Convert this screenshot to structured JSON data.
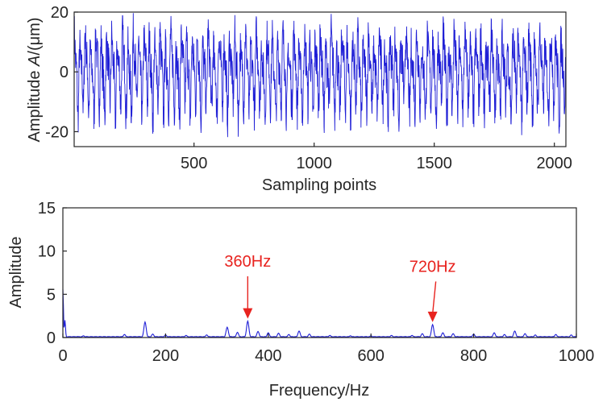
{
  "colors": {
    "series": "#1f1fd6",
    "annotation": "#e8231f",
    "axis": "#262626"
  },
  "chart_data": [
    {
      "type": "line",
      "title": "",
      "xlabel": "Sampling points",
      "ylabel_prefix": "Amplitude ",
      "ylabel_var": "A",
      "ylabel_suffix": "/(μm)",
      "xlim": [
        1,
        2048
      ],
      "ylim": [
        -25,
        20
      ],
      "xticks": [
        500,
        1000,
        1500,
        2000
      ],
      "xtick_labels": [
        "500",
        "1000",
        "1500",
        "2000"
      ],
      "yticks": [
        -20,
        0,
        20
      ],
      "ytick_labels": [
        "-20",
        "0",
        "20"
      ],
      "grid": false,
      "series": [
        {
          "n_points": 2048,
          "range": [
            -25,
            20
          ],
          "dominant_frequency_hz": 360,
          "harmonic_hz": 720
        }
      ]
    },
    {
      "type": "line",
      "title": "",
      "xlabel": "Frequency/Hz",
      "ylabel": "Amplitude",
      "xlim": [
        0,
        1000
      ],
      "ylim": [
        0,
        15
      ],
      "xticks": [
        0,
        200,
        400,
        600,
        800,
        1000
      ],
      "xtick_labels": [
        "0",
        "200",
        "400",
        "600",
        "800",
        "1000"
      ],
      "yticks": [
        0,
        5,
        10,
        15
      ],
      "ytick_labels": [
        "0",
        "5",
        "10",
        "15"
      ],
      "grid": false,
      "series": [
        {
          "peaks": [
            {
              "x": 0,
              "y": 5.6
            },
            {
              "x": 4,
              "y": 2.0
            },
            {
              "x": 40,
              "y": 0.2
            },
            {
              "x": 120,
              "y": 0.35
            },
            {
              "x": 160,
              "y": 1.8
            },
            {
              "x": 175,
              "y": 0.4
            },
            {
              "x": 200,
              "y": 0.3
            },
            {
              "x": 240,
              "y": 0.25
            },
            {
              "x": 280,
              "y": 0.3
            },
            {
              "x": 320,
              "y": 1.2
            },
            {
              "x": 340,
              "y": 0.6
            },
            {
              "x": 360,
              "y": 1.9
            },
            {
              "x": 380,
              "y": 0.7
            },
            {
              "x": 400,
              "y": 0.55
            },
            {
              "x": 420,
              "y": 0.5
            },
            {
              "x": 440,
              "y": 0.35
            },
            {
              "x": 460,
              "y": 0.75
            },
            {
              "x": 480,
              "y": 0.4
            },
            {
              "x": 520,
              "y": 0.25
            },
            {
              "x": 560,
              "y": 0.2
            },
            {
              "x": 600,
              "y": 0.2
            },
            {
              "x": 640,
              "y": 0.25
            },
            {
              "x": 680,
              "y": 0.25
            },
            {
              "x": 700,
              "y": 0.45
            },
            {
              "x": 720,
              "y": 1.5
            },
            {
              "x": 740,
              "y": 0.55
            },
            {
              "x": 760,
              "y": 0.45
            },
            {
              "x": 800,
              "y": 0.4
            },
            {
              "x": 840,
              "y": 0.55
            },
            {
              "x": 860,
              "y": 0.35
            },
            {
              "x": 880,
              "y": 0.75
            },
            {
              "x": 900,
              "y": 0.45
            },
            {
              "x": 920,
              "y": 0.3
            },
            {
              "x": 960,
              "y": 0.35
            },
            {
              "x": 990,
              "y": 0.3
            }
          ]
        }
      ],
      "annotations": [
        {
          "text": "360Hz",
          "x": 360,
          "y": 1.9,
          "label_y": 8.2
        },
        {
          "text": "720Hz",
          "x": 720,
          "y": 1.5,
          "label_y": 7.6
        }
      ]
    }
  ]
}
